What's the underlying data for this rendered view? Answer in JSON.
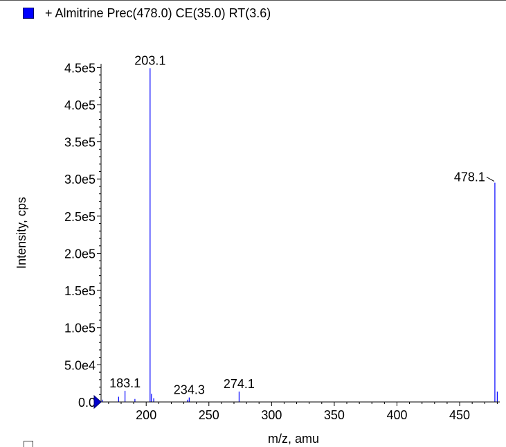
{
  "legend": {
    "label": "+ Almitrine Prec(478.0) CE(35.0) RT(3.6)",
    "color": "#0000ff"
  },
  "chart_data": {
    "type": "bar",
    "title": "",
    "xlabel": "m/z, amu",
    "ylabel": "Intensity, cps",
    "xlim": [
      164,
      482
    ],
    "ylim": [
      0,
      455000
    ],
    "x_ticks": [
      200,
      250,
      300,
      350,
      400,
      450
    ],
    "y_ticks": [
      {
        "value": 0,
        "label": "0.0"
      },
      {
        "value": 50000,
        "label": "5.0e4"
      },
      {
        "value": 100000,
        "label": "1.0e5"
      },
      {
        "value": 150000,
        "label": "1.5e5"
      },
      {
        "value": 200000,
        "label": "2.0e5"
      },
      {
        "value": 250000,
        "label": "2.5e5"
      },
      {
        "value": 300000,
        "label": "3.0e5"
      },
      {
        "value": 350000,
        "label": "3.5e5"
      },
      {
        "value": 400000,
        "label": "4.0e5"
      },
      {
        "value": 450000,
        "label": "4.5e5"
      }
    ],
    "series": [
      {
        "color": "#0000ff",
        "peaks": [
          {
            "mz": 165.0,
            "intensity": 3000
          },
          {
            "mz": 178.0,
            "intensity": 7000
          },
          {
            "mz": 183.1,
            "intensity": 15000
          },
          {
            "mz": 191.0,
            "intensity": 4000
          },
          {
            "mz": 203.1,
            "intensity": 449000
          },
          {
            "mz": 204.2,
            "intensity": 11000
          },
          {
            "mz": 206.0,
            "intensity": 5000
          },
          {
            "mz": 233.0,
            "intensity": 3000
          },
          {
            "mz": 234.3,
            "intensity": 6000
          },
          {
            "mz": 274.1,
            "intensity": 14000
          },
          {
            "mz": 478.1,
            "intensity": 295000
          },
          {
            "mz": 480.0,
            "intensity": 14000
          }
        ]
      }
    ],
    "peak_labels": [
      {
        "mz": 183.1,
        "label": "183.1"
      },
      {
        "mz": 203.1,
        "label": "203.1"
      },
      {
        "mz": 234.3,
        "label": "234.3"
      },
      {
        "mz": 274.1,
        "label": "274.1"
      },
      {
        "mz": 478.1,
        "label": "478.1"
      }
    ]
  }
}
